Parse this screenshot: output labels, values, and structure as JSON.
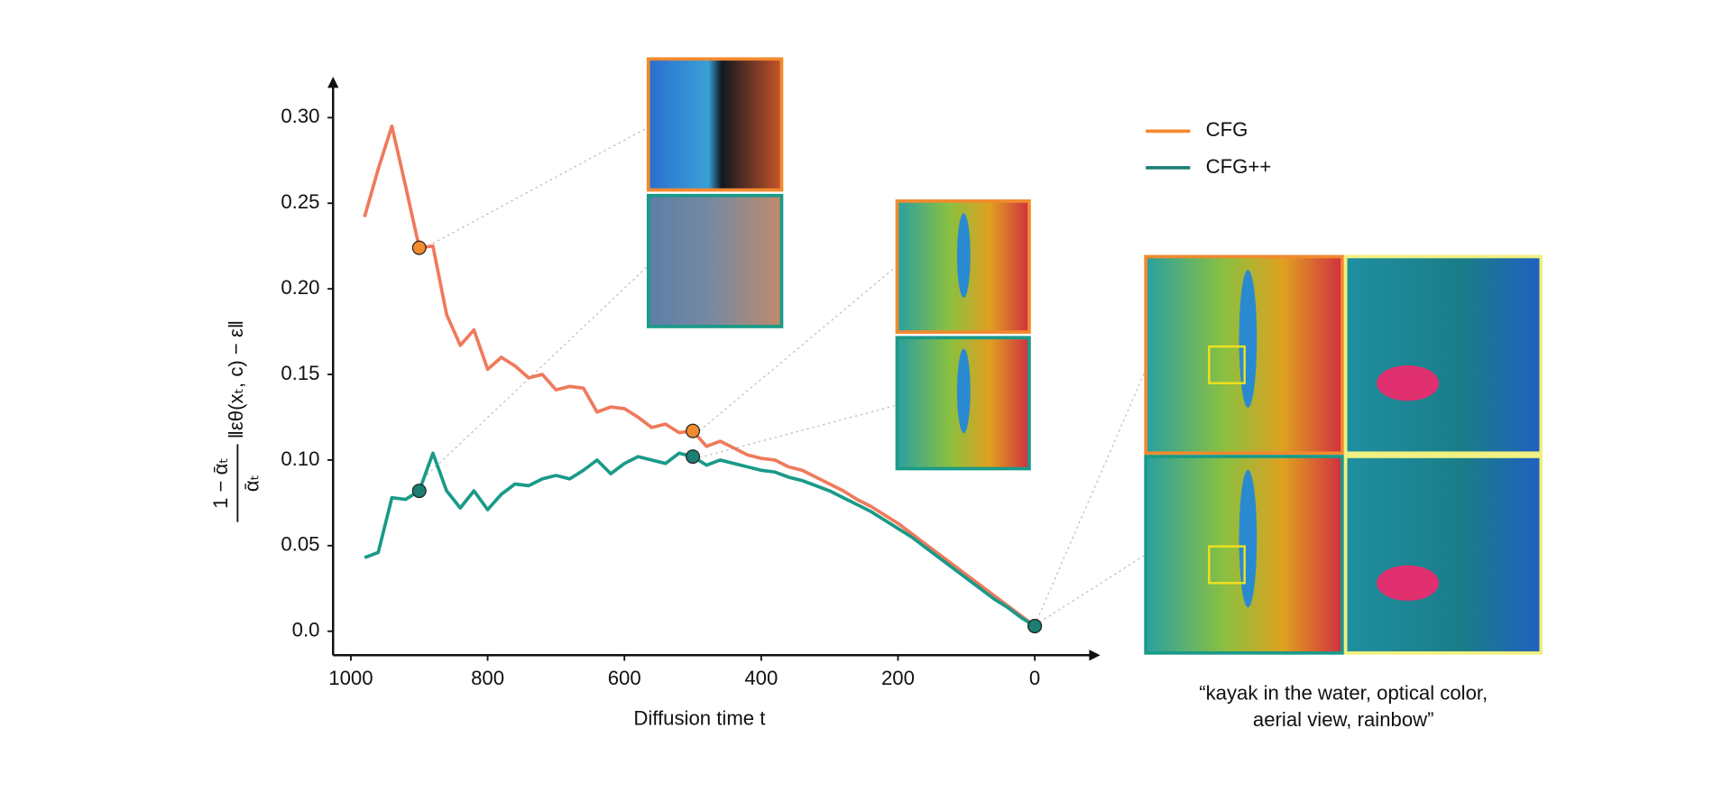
{
  "chart_data": {
    "type": "line",
    "x_label": "Diffusion time t",
    "y_label": {
      "numerator": "1 − ᾱₜ",
      "denominator": "ᾱₜ",
      "norm": "‖εθ(xₜ, c) − ε‖"
    },
    "x": [
      980,
      960,
      940,
      920,
      900,
      880,
      860,
      840,
      820,
      800,
      780,
      760,
      740,
      720,
      700,
      680,
      660,
      640,
      620,
      600,
      580,
      560,
      540,
      520,
      500,
      480,
      460,
      440,
      420,
      400,
      380,
      360,
      340,
      320,
      300,
      280,
      260,
      240,
      220,
      200,
      180,
      160,
      140,
      120,
      100,
      80,
      60,
      40,
      20,
      0
    ],
    "series": [
      {
        "name": "CFG",
        "color": "#ef7a5c",
        "marker_color": "#f28a2e",
        "values": [
          0.242,
          0.27,
          0.295,
          0.26,
          0.224,
          0.225,
          0.185,
          0.167,
          0.176,
          0.153,
          0.16,
          0.155,
          0.148,
          0.15,
          0.141,
          0.143,
          0.142,
          0.128,
          0.131,
          0.13,
          0.125,
          0.119,
          0.121,
          0.116,
          0.117,
          0.108,
          0.111,
          0.107,
          0.103,
          0.101,
          0.1,
          0.096,
          0.094,
          0.09,
          0.086,
          0.082,
          0.077,
          0.073,
          0.068,
          0.063,
          0.057,
          0.051,
          0.045,
          0.039,
          0.033,
          0.027,
          0.021,
          0.015,
          0.009,
          0.003
        ]
      },
      {
        "name": "CFG++",
        "color": "#1a9a88",
        "marker_color": "#1a7f72",
        "values": [
          0.043,
          0.046,
          0.078,
          0.077,
          0.082,
          0.104,
          0.082,
          0.072,
          0.082,
          0.071,
          0.08,
          0.086,
          0.085,
          0.089,
          0.091,
          0.089,
          0.094,
          0.1,
          0.092,
          0.098,
          0.102,
          0.1,
          0.098,
          0.104,
          0.102,
          0.097,
          0.1,
          0.098,
          0.096,
          0.094,
          0.093,
          0.09,
          0.088,
          0.085,
          0.082,
          0.078,
          0.074,
          0.07,
          0.065,
          0.06,
          0.055,
          0.049,
          0.043,
          0.037,
          0.031,
          0.025,
          0.019,
          0.014,
          0.008,
          0.003
        ]
      }
    ],
    "markers_x": [
      900,
      500,
      0
    ],
    "xlim": [
      1026,
      -86
    ],
    "xticks": [
      1000,
      800,
      600,
      400,
      200,
      0
    ],
    "ylim": [
      -0.014,
      0.32
    ],
    "yticks": [
      {
        "value": 0,
        "label": "0.0"
      },
      0.05,
      {
        "value": 0.1,
        "label": "0.10"
      },
      0.15,
      {
        "value": 0.2,
        "label": "0.20"
      },
      0.25,
      {
        "value": 0.3,
        "label": "0.30"
      }
    ],
    "legend": "upper right",
    "caption": "“kayak in the water, optical color, aerial view, rainbow”"
  }
}
